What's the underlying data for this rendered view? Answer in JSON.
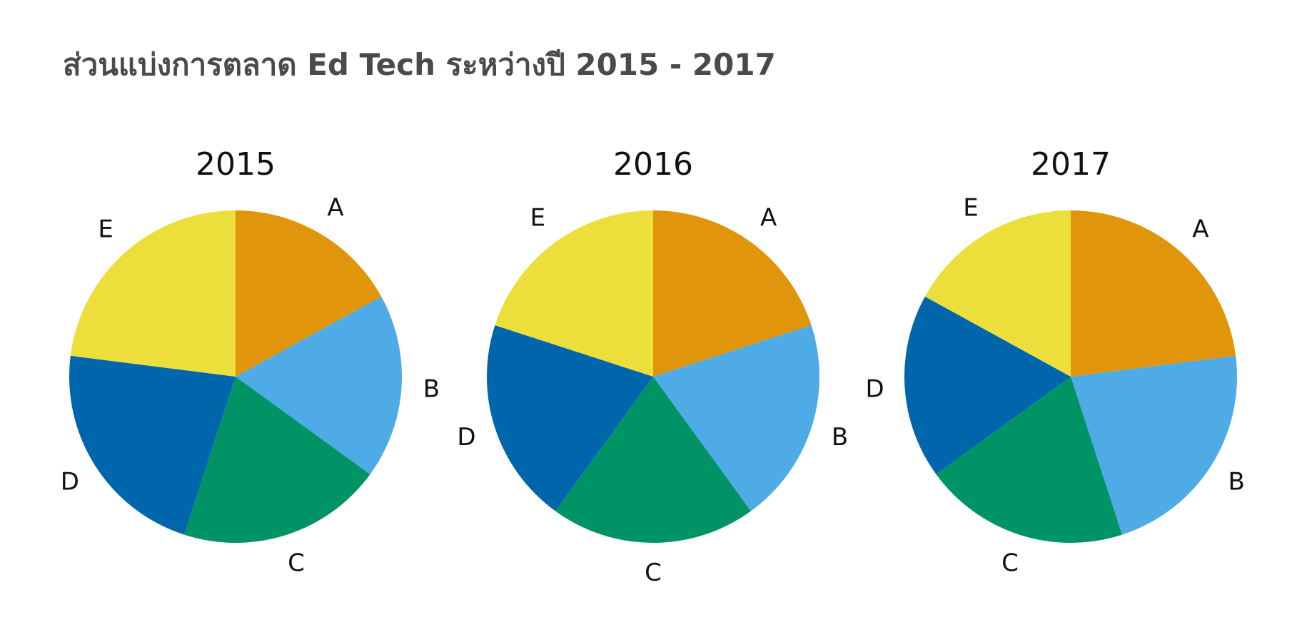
{
  "page": {
    "title": "ส่วนแบ่งการตลาด Ed Tech ระหว่างปี 2015 - 2017"
  },
  "chart_data": [
    {
      "type": "pie",
      "title": "2015",
      "categories": [
        "A",
        "B",
        "C",
        "D",
        "E"
      ],
      "values": [
        17,
        18,
        20,
        22,
        23
      ],
      "colors": [
        "#E0950B",
        "#4FABE6",
        "#009366",
        "#0066AB",
        "#ECDF3B"
      ],
      "start_angle_deg": 0,
      "direction": "clockwise"
    },
    {
      "type": "pie",
      "title": "2016",
      "categories": [
        "A",
        "B",
        "C",
        "D",
        "E"
      ],
      "values": [
        20,
        20,
        20,
        20,
        20
      ],
      "colors": [
        "#E0950B",
        "#4FABE6",
        "#009366",
        "#0066AB",
        "#ECDF3B"
      ],
      "start_angle_deg": 0,
      "direction": "clockwise"
    },
    {
      "type": "pie",
      "title": "2017",
      "categories": [
        "A",
        "B",
        "C",
        "D",
        "E"
      ],
      "values": [
        23,
        22,
        20,
        18,
        17
      ],
      "colors": [
        "#E0950B",
        "#4FABE6",
        "#009366",
        "#0066AB",
        "#ECDF3B"
      ],
      "start_angle_deg": 0,
      "direction": "clockwise"
    }
  ]
}
